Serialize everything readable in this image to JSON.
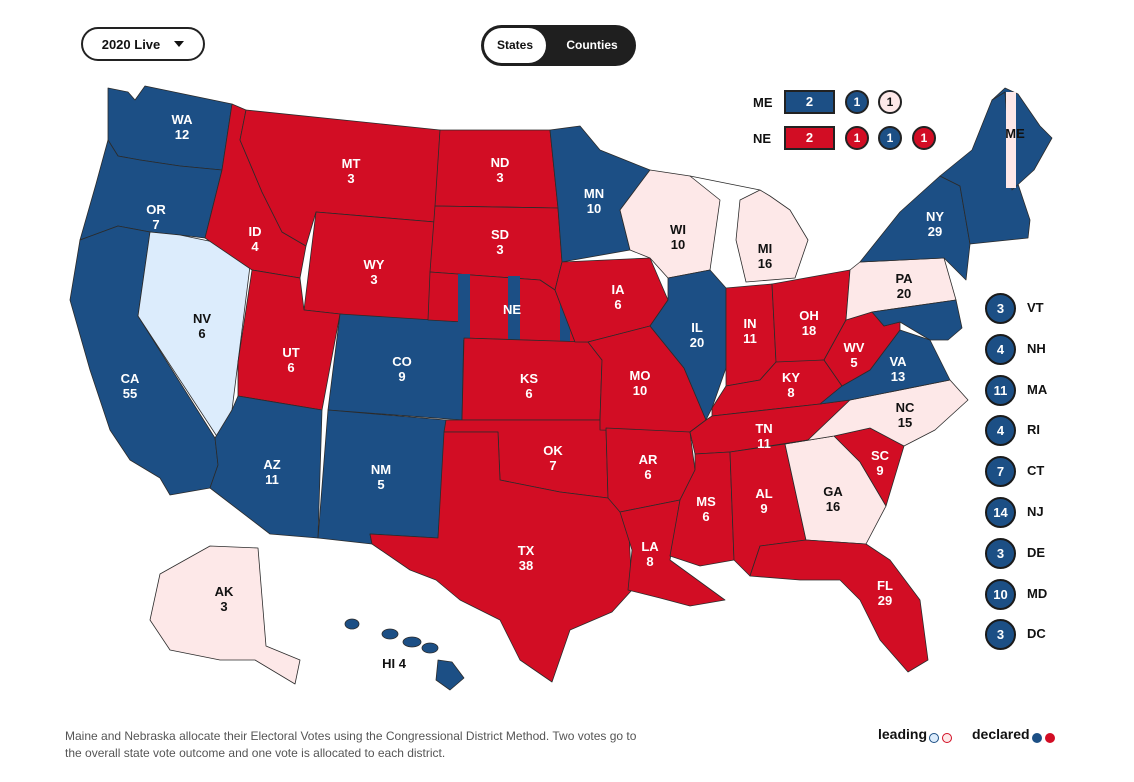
{
  "header": {
    "year_selector": "2020 Live",
    "view_toggle": {
      "states": "States",
      "counties": "Counties",
      "selected": "States"
    }
  },
  "colors": {
    "red": "#d20d24",
    "blue": "#1c4f85",
    "leading_red": "#fde8e8",
    "leading_blue": "#dcecfc"
  },
  "states": {
    "WA": {
      "abbr": "WA",
      "ev": "12",
      "status": "declared-blue"
    },
    "OR": {
      "abbr": "OR",
      "ev": "7",
      "status": "declared-blue"
    },
    "CA": {
      "abbr": "CA",
      "ev": "55",
      "status": "declared-blue"
    },
    "NV": {
      "abbr": "NV",
      "ev": "6",
      "status": "leading-blue"
    },
    "ID": {
      "abbr": "ID",
      "ev": "4",
      "status": "declared-red"
    },
    "MT": {
      "abbr": "MT",
      "ev": "3",
      "status": "declared-red"
    },
    "WY": {
      "abbr": "WY",
      "ev": "3",
      "status": "declared-red"
    },
    "UT": {
      "abbr": "UT",
      "ev": "6",
      "status": "declared-red"
    },
    "AZ": {
      "abbr": "AZ",
      "ev": "11",
      "status": "declared-blue"
    },
    "CO": {
      "abbr": "CO",
      "ev": "9",
      "status": "declared-blue"
    },
    "NM": {
      "abbr": "NM",
      "ev": "5",
      "status": "declared-blue"
    },
    "ND": {
      "abbr": "ND",
      "ev": "3",
      "status": "declared-red"
    },
    "SD": {
      "abbr": "SD",
      "ev": "3",
      "status": "declared-red"
    },
    "NE": {
      "abbr": "NE",
      "ev": "",
      "status": "split"
    },
    "KS": {
      "abbr": "KS",
      "ev": "6",
      "status": "declared-red"
    },
    "OK": {
      "abbr": "OK",
      "ev": "7",
      "status": "declared-red"
    },
    "TX": {
      "abbr": "TX",
      "ev": "38",
      "status": "declared-red"
    },
    "MN": {
      "abbr": "MN",
      "ev": "10",
      "status": "declared-blue"
    },
    "IA": {
      "abbr": "IA",
      "ev": "6",
      "status": "declared-red"
    },
    "MO": {
      "abbr": "MO",
      "ev": "10",
      "status": "declared-red"
    },
    "AR": {
      "abbr": "AR",
      "ev": "6",
      "status": "declared-red"
    },
    "LA": {
      "abbr": "LA",
      "ev": "8",
      "status": "declared-red"
    },
    "WI": {
      "abbr": "WI",
      "ev": "10",
      "status": "leading-red"
    },
    "IL": {
      "abbr": "IL",
      "ev": "20",
      "status": "declared-blue"
    },
    "MI": {
      "abbr": "MI",
      "ev": "16",
      "status": "leading-red"
    },
    "IN": {
      "abbr": "IN",
      "ev": "11",
      "status": "declared-red"
    },
    "OH": {
      "abbr": "OH",
      "ev": "18",
      "status": "declared-red"
    },
    "KY": {
      "abbr": "KY",
      "ev": "8",
      "status": "declared-red"
    },
    "TN": {
      "abbr": "TN",
      "ev": "11",
      "status": "declared-red"
    },
    "MS": {
      "abbr": "MS",
      "ev": "6",
      "status": "declared-red"
    },
    "AL": {
      "abbr": "AL",
      "ev": "9",
      "status": "declared-red"
    },
    "GA": {
      "abbr": "GA",
      "ev": "16",
      "status": "leading-red"
    },
    "FL": {
      "abbr": "FL",
      "ev": "29",
      "status": "declared-red"
    },
    "SC": {
      "abbr": "SC",
      "ev": "9",
      "status": "declared-red"
    },
    "NC": {
      "abbr": "NC",
      "ev": "15",
      "status": "leading-red"
    },
    "VA": {
      "abbr": "VA",
      "ev": "13",
      "status": "declared-blue"
    },
    "WV": {
      "abbr": "WV",
      "ev": "5",
      "status": "declared-red"
    },
    "PA": {
      "abbr": "PA",
      "ev": "20",
      "status": "leading-red"
    },
    "NY": {
      "abbr": "NY",
      "ev": "29",
      "status": "declared-blue"
    },
    "ME": {
      "abbr": "ME",
      "ev": "",
      "status": "split"
    },
    "AK": {
      "abbr": "AK",
      "ev": "3",
      "status": "leading-red"
    },
    "HI": {
      "abbr": "HI",
      "ev": "4",
      "status": "declared-blue"
    }
  },
  "split_states": {
    "ME": {
      "label": "ME",
      "statewide": "2",
      "districts": [
        "1",
        "1"
      ]
    },
    "NE": {
      "label": "NE",
      "statewide": "2",
      "districts": [
        "1",
        "1",
        "1"
      ]
    }
  },
  "small_states": [
    {
      "abbr": "VT",
      "ev": "3"
    },
    {
      "abbr": "NH",
      "ev": "4"
    },
    {
      "abbr": "MA",
      "ev": "11"
    },
    {
      "abbr": "RI",
      "ev": "4"
    },
    {
      "abbr": "CT",
      "ev": "7"
    },
    {
      "abbr": "NJ",
      "ev": "14"
    },
    {
      "abbr": "DE",
      "ev": "3"
    },
    {
      "abbr": "MD",
      "ev": "10"
    },
    {
      "abbr": "DC",
      "ev": "3"
    }
  ],
  "footnote": "Maine and Nebraska allocate their Electoral Votes using the Congressional District Method. Two votes go to the overall state vote outcome and one vote is allocated to each district.",
  "legend": {
    "leading": "leading",
    "declared": "declared"
  }
}
